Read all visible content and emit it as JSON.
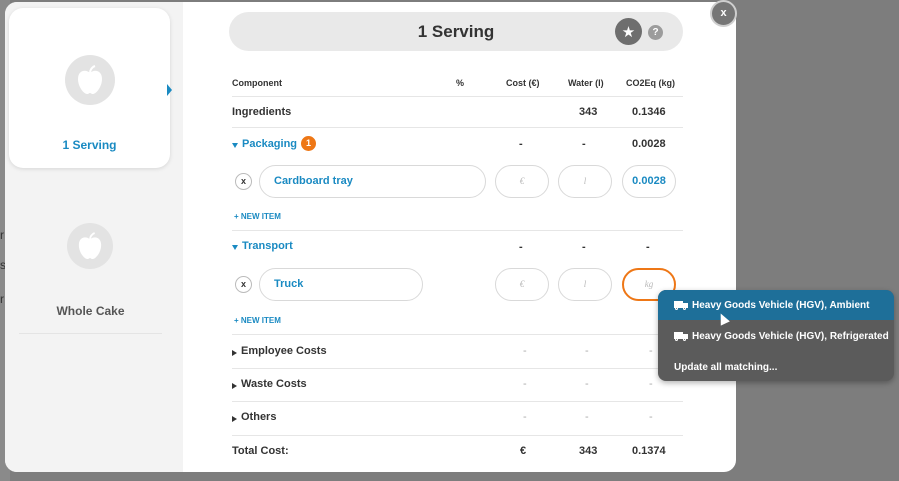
{
  "backdrop": {
    "chars": [
      "r",
      "s",
      "r"
    ]
  },
  "sidebar": {
    "cards": [
      {
        "label": "1 Serving",
        "active": true
      },
      {
        "label": "Whole Cake",
        "active": false
      }
    ]
  },
  "header": {
    "title": "1 Serving",
    "help_label": "?",
    "close_label": "x"
  },
  "table": {
    "columns": [
      "Component",
      "%",
      "Cost (€)",
      "Water (l)",
      "CO2Eq (kg)"
    ],
    "ingredients": {
      "label": "Ingredients",
      "water": "343",
      "co2": "0.1346"
    },
    "packaging": {
      "label": "Packaging",
      "badge": "1",
      "cost": "-",
      "water": "-",
      "co2": "0.0028",
      "item": {
        "remove": "x",
        "name": "Cardboard tray",
        "cost_placeholder": "€",
        "water_placeholder": "l",
        "co2_value": "0.0028"
      },
      "new_item": "+ NEW ITEM"
    },
    "transport": {
      "label": "Transport",
      "cost": "-",
      "water": "-",
      "co2": "-",
      "item": {
        "remove": "x",
        "name": "Truck",
        "cost_placeholder": "€",
        "water_placeholder": "l",
        "co2_placeholder": "kg"
      },
      "new_item": "+ NEW ITEM"
    },
    "collapsed": [
      {
        "label": "Employee Costs",
        "cost": "-",
        "water": "-",
        "co2": "-"
      },
      {
        "label": "Waste Costs",
        "cost": "-",
        "water": "-",
        "co2": "-"
      },
      {
        "label": "Others",
        "cost": "-",
        "water": "-",
        "co2": "-"
      }
    ],
    "total": {
      "label": "Total Cost:",
      "cost": "€",
      "water": "343",
      "co2": "0.1374"
    }
  },
  "dropdown": {
    "items": [
      {
        "label": "Heavy Goods Vehicle (HGV), Ambient",
        "icon": "truck-icon",
        "highlighted": true
      },
      {
        "label": "Heavy Goods Vehicle (HGV), Refrigerated",
        "icon": "truck-icon",
        "highlighted": false
      },
      {
        "label": "Update all matching...",
        "icon": "",
        "highlighted": false
      }
    ]
  },
  "colors": {
    "accent_blue": "#1a8ac2",
    "accent_orange": "#ee7716",
    "dropdown_bg": "#5b5b5b",
    "dropdown_highlight": "#1e6f99"
  }
}
